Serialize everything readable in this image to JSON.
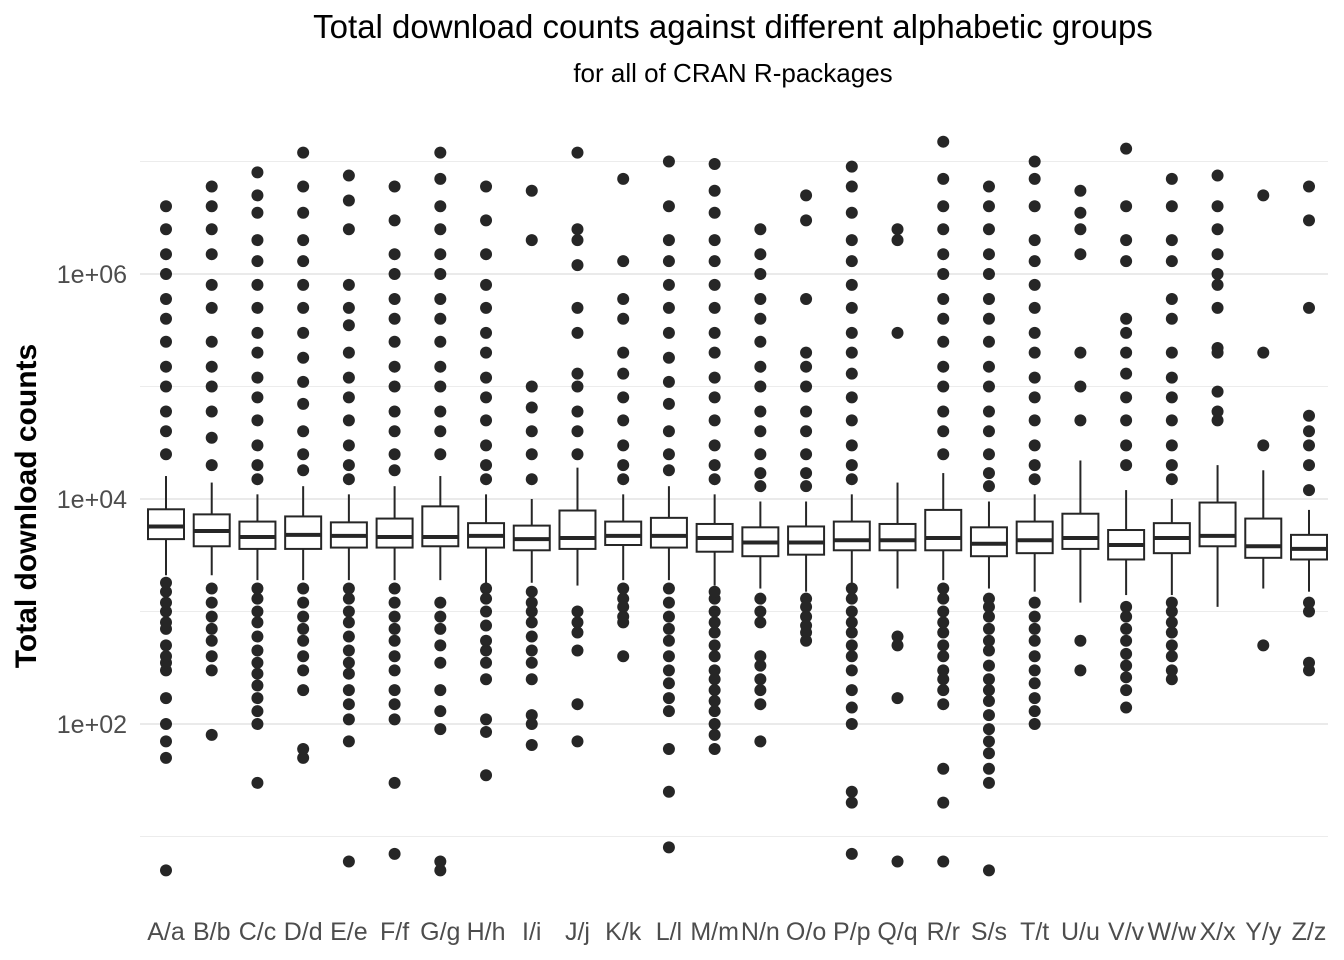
{
  "chart_data": {
    "type": "boxplot",
    "title": "Total download counts against different alphabetic groups",
    "subtitle": "for all of CRAN R-packages",
    "xlabel": "",
    "ylabel": "Total download counts",
    "y_scale": "log10",
    "ylim": [
      3,
      20000000
    ],
    "y_ticks": [
      {
        "value": 100,
        "label": "1e+02"
      },
      {
        "value": 10000,
        "label": "1e+04"
      },
      {
        "value": 1000000,
        "label": "1e+06"
      }
    ],
    "y_minor_grid": [
      10,
      1000,
      100000,
      10000000
    ],
    "categories": [
      "A/a",
      "B/b",
      "C/c",
      "D/d",
      "E/e",
      "F/f",
      "G/g",
      "H/h",
      "I/i",
      "J/j",
      "K/k",
      "L/l",
      "M/m",
      "N/n",
      "O/o",
      "P/p",
      "Q/q",
      "R/r",
      "S/s",
      "T/t",
      "U/u",
      "V/v",
      "W/w",
      "X/x",
      "Y/y",
      "Z/z"
    ],
    "boxes": [
      {
        "name": "A/a",
        "q1": 4400,
        "median": 5700,
        "q3": 8100,
        "whisker_low": 2100,
        "whisker_high": 16000,
        "outliers": [
          5,
          50,
          70,
          100,
          170,
          300,
          350,
          400,
          500,
          700,
          800,
          1000,
          1200,
          1500,
          1800,
          25000,
          40000,
          60000,
          100000,
          150000,
          250000,
          400000,
          600000,
          1000000,
          1500000,
          2500000,
          4000000
        ]
      },
      {
        "name": "B/b",
        "q1": 3800,
        "median": 5200,
        "q3": 7300,
        "whisker_low": 2100,
        "whisker_high": 14000,
        "outliers": [
          80,
          300,
          400,
          550,
          700,
          900,
          1200,
          1600,
          20000,
          35000,
          60000,
          100000,
          150000,
          250000,
          500000,
          800000,
          1500000,
          2500000,
          4000000,
          6000000
        ]
      },
      {
        "name": "C/c",
        "q1": 3600,
        "median": 4600,
        "q3": 6300,
        "whisker_low": 1900,
        "whisker_high": 11000,
        "outliers": [
          30,
          100,
          130,
          170,
          220,
          280,
          350,
          450,
          600,
          800,
          1000,
          1300,
          1600,
          15000,
          20000,
          30000,
          50000,
          80000,
          120000,
          200000,
          300000,
          500000,
          800000,
          1300000,
          2000000,
          3500000,
          5000000,
          8000000
        ]
      },
      {
        "name": "D/d",
        "q1": 3600,
        "median": 4800,
        "q3": 7000,
        "whisker_low": 1900,
        "whisker_high": 13000,
        "outliers": [
          50,
          60,
          200,
          300,
          400,
          550,
          700,
          900,
          1200,
          1600,
          18000,
          25000,
          40000,
          70000,
          110000,
          180000,
          300000,
          500000,
          800000,
          1300000,
          2000000,
          3500000,
          6000000,
          12000000
        ]
      },
      {
        "name": "E/e",
        "q1": 3700,
        "median": 4700,
        "q3": 6200,
        "whisker_low": 1900,
        "whisker_high": 11000,
        "outliers": [
          6,
          70,
          110,
          150,
          200,
          280,
          350,
          450,
          600,
          800,
          1000,
          1300,
          1600,
          15000,
          20000,
          30000,
          50000,
          80000,
          120000,
          200000,
          350000,
          500000,
          800000,
          2500000,
          4500000,
          7500000
        ]
      },
      {
        "name": "F/f",
        "q1": 3700,
        "median": 4600,
        "q3": 6700,
        "whisker_low": 1900,
        "whisker_high": 13000,
        "outliers": [
          7,
          30,
          110,
          150,
          200,
          300,
          400,
          550,
          700,
          900,
          1200,
          1600,
          18000,
          25000,
          40000,
          60000,
          100000,
          150000,
          250000,
          400000,
          600000,
          1000000,
          1500000,
          3000000,
          6000000
        ]
      },
      {
        "name": "G/g",
        "q1": 3800,
        "median": 4600,
        "q3": 8600,
        "whisker_low": 1900,
        "whisker_high": 16000,
        "outliers": [
          5,
          6,
          90,
          130,
          200,
          350,
          500,
          700,
          900,
          1200,
          25000,
          40000,
          60000,
          100000,
          150000,
          250000,
          400000,
          600000,
          1000000,
          1500000,
          2500000,
          4000000,
          7000000,
          12000000
        ]
      },
      {
        "name": "H/h",
        "q1": 3700,
        "median": 4700,
        "q3": 6100,
        "whisker_low": 1700,
        "whisker_high": 11000,
        "outliers": [
          35,
          85,
          110,
          250,
          350,
          450,
          550,
          750,
          1000,
          1300,
          1600,
          15000,
          20000,
          30000,
          50000,
          80000,
          120000,
          200000,
          300000,
          500000,
          800000,
          1500000,
          3000000,
          6000000
        ]
      },
      {
        "name": "I/i",
        "q1": 3500,
        "median": 4400,
        "q3": 5800,
        "whisker_low": 1800,
        "whisker_high": 10000,
        "outliers": [
          65,
          100,
          120,
          250,
          350,
          450,
          600,
          800,
          1000,
          1200,
          1500,
          15000,
          25000,
          40000,
          65000,
          100000,
          2000000,
          5500000
        ]
      },
      {
        "name": "J/j",
        "q1": 3600,
        "median": 4500,
        "q3": 7900,
        "whisker_low": 1700,
        "whisker_high": 19000,
        "outliers": [
          70,
          150,
          450,
          650,
          800,
          1000,
          25000,
          40000,
          60000,
          100000,
          130000,
          300000,
          500000,
          1200000,
          2000000,
          2500000,
          12000000
        ]
      },
      {
        "name": "K/k",
        "q1": 3900,
        "median": 4700,
        "q3": 6300,
        "whisker_low": 1900,
        "whisker_high": 11000,
        "outliers": [
          400,
          800,
          900,
          1100,
          1300,
          1600,
          15000,
          20000,
          30000,
          50000,
          80000,
          130000,
          200000,
          400000,
          600000,
          1300000,
          7000000
        ]
      },
      {
        "name": "L/l",
        "q1": 3700,
        "median": 4700,
        "q3": 6800,
        "whisker_low": 1900,
        "whisker_high": 13000,
        "outliers": [
          8,
          25,
          60,
          130,
          170,
          230,
          300,
          400,
          550,
          700,
          900,
          1200,
          1600,
          18000,
          25000,
          40000,
          70000,
          110000,
          180000,
          300000,
          500000,
          800000,
          1300000,
          2000000,
          4000000,
          10000000
        ]
      },
      {
        "name": "M/m",
        "q1": 3400,
        "median": 4500,
        "q3": 6000,
        "whisker_low": 1700,
        "whisker_high": 11000,
        "outliers": [
          60,
          80,
          100,
          130,
          160,
          200,
          250,
          300,
          400,
          500,
          650,
          800,
          1000,
          1300,
          1500,
          15000,
          20000,
          30000,
          50000,
          80000,
          120000,
          200000,
          300000,
          500000,
          800000,
          1300000,
          2000000,
          3500000,
          5500000,
          9500000
        ]
      },
      {
        "name": "N/n",
        "q1": 3100,
        "median": 4100,
        "q3": 5600,
        "whisker_low": 1600,
        "whisker_high": 9500,
        "outliers": [
          70,
          150,
          200,
          250,
          330,
          400,
          800,
          1000,
          1300,
          13000,
          17000,
          25000,
          40000,
          60000,
          100000,
          150000,
          250000,
          400000,
          600000,
          1000000,
          1500000,
          2500000
        ]
      },
      {
        "name": "O/o",
        "q1": 3200,
        "median": 4100,
        "q3": 5700,
        "whisker_low": 1500,
        "whisker_high": 9500,
        "outliers": [
          550,
          650,
          750,
          900,
          1100,
          1300,
          13000,
          17000,
          25000,
          40000,
          60000,
          100000,
          150000,
          200000,
          600000,
          3000000,
          5000000
        ]
      },
      {
        "name": "P/p",
        "q1": 3500,
        "median": 4300,
        "q3": 6300,
        "whisker_low": 1800,
        "whisker_high": 11000,
        "outliers": [
          7,
          20,
          25,
          100,
          140,
          200,
          300,
          400,
          500,
          650,
          800,
          1000,
          1300,
          1600,
          15000,
          20000,
          30000,
          50000,
          80000,
          130000,
          200000,
          300000,
          500000,
          800000,
          1300000,
          2000000,
          3500000,
          6000000,
          9000000
        ]
      },
      {
        "name": "Q/q",
        "q1": 3500,
        "median": 4300,
        "q3": 6000,
        "whisker_low": 1600,
        "whisker_high": 14000,
        "outliers": [
          6,
          170,
          500,
          600,
          300000,
          2000000,
          2500000
        ]
      },
      {
        "name": "R/r",
        "q1": 3500,
        "median": 4500,
        "q3": 8000,
        "whisker_low": 1900,
        "whisker_high": 17000,
        "outliers": [
          6,
          20,
          40,
          150,
          200,
          250,
          300,
          400,
          500,
          650,
          800,
          1000,
          1300,
          1600,
          25000,
          40000,
          60000,
          100000,
          150000,
          250000,
          400000,
          600000,
          1000000,
          1500000,
          2500000,
          4000000,
          7000000,
          15000000
        ]
      },
      {
        "name": "S/s",
        "q1": 3100,
        "median": 4000,
        "q3": 5600,
        "whisker_low": 1600,
        "whisker_high": 9500,
        "outliers": [
          5,
          30,
          40,
          55,
          70,
          90,
          120,
          160,
          200,
          250,
          330,
          450,
          550,
          700,
          900,
          1100,
          1300,
          13000,
          17000,
          25000,
          40000,
          60000,
          100000,
          150000,
          250000,
          400000,
          600000,
          1000000,
          1500000,
          2500000,
          4000000,
          6000000
        ]
      },
      {
        "name": "T/t",
        "q1": 3300,
        "median": 4300,
        "q3": 6300,
        "whisker_low": 1500,
        "whisker_high": 11000,
        "outliers": [
          100,
          130,
          170,
          230,
          300,
          400,
          550,
          700,
          900,
          1200,
          15000,
          20000,
          30000,
          50000,
          80000,
          120000,
          200000,
          300000,
          500000,
          800000,
          1300000,
          2000000,
          4000000,
          7000000,
          10000000
        ]
      },
      {
        "name": "U/u",
        "q1": 3600,
        "median": 4500,
        "q3": 7400,
        "whisker_low": 1200,
        "whisker_high": 22000,
        "outliers": [
          300,
          550,
          50000,
          100000,
          200000,
          1500000,
          2500000,
          3500000,
          5500000
        ]
      },
      {
        "name": "V/v",
        "q1": 2900,
        "median": 3900,
        "q3": 5300,
        "whisker_low": 1400,
        "whisker_high": 12000,
        "outliers": [
          140,
          200,
          260,
          330,
          420,
          550,
          700,
          900,
          1100,
          20000,
          30000,
          50000,
          80000,
          130000,
          200000,
          300000,
          400000,
          1300000,
          2000000,
          4000000,
          13000000
        ]
      },
      {
        "name": "W/w",
        "q1": 3300,
        "median": 4500,
        "q3": 6100,
        "whisker_low": 1400,
        "whisker_high": 10000,
        "outliers": [
          250,
          300,
          400,
          500,
          650,
          800,
          1000,
          1200,
          15000,
          20000,
          30000,
          50000,
          80000,
          120000,
          200000,
          400000,
          600000,
          1300000,
          2000000,
          4000000,
          7000000
        ]
      },
      {
        "name": "X/x",
        "q1": 3800,
        "median": 4700,
        "q3": 9300,
        "whisker_low": 1100,
        "whisker_high": 20000,
        "outliers": [
          50000,
          60000,
          90000,
          200000,
          220000,
          500000,
          800000,
          1000000,
          1500000,
          2500000,
          4000000,
          7500000
        ]
      },
      {
        "name": "Y/y",
        "q1": 3000,
        "median": 3800,
        "q3": 6700,
        "whisker_low": 1600,
        "whisker_high": 18000,
        "outliers": [
          500,
          30000,
          200000,
          5000000
        ]
      },
      {
        "name": "Z/z",
        "q1": 2900,
        "median": 3600,
        "q3": 4800,
        "whisker_low": 1500,
        "whisker_high": 8000,
        "outliers": [
          300,
          350,
          1000,
          1200,
          12000,
          20000,
          30000,
          40000,
          55000,
          500000,
          3000000,
          6000000
        ]
      }
    ]
  }
}
